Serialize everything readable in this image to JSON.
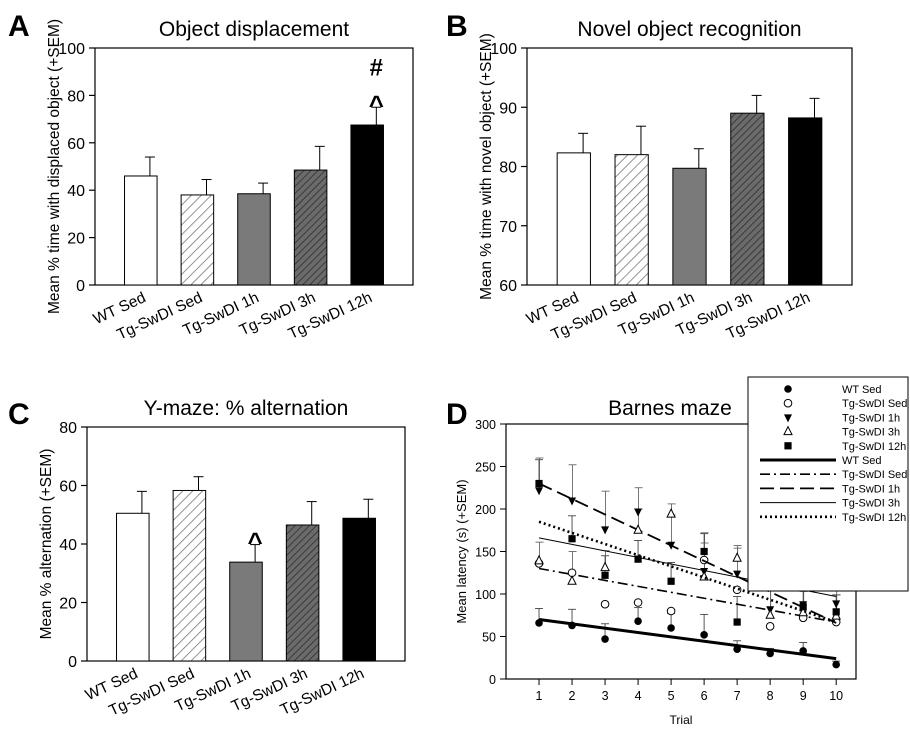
{
  "chart_data": [
    {
      "panel": "A",
      "type": "bar",
      "title": "Object displacement",
      "xlabel": "",
      "ylabel": "Mean % time with displaced object (+SEM)",
      "ylim": [
        0,
        100
      ],
      "yticks": [
        0,
        20,
        40,
        60,
        80,
        100
      ],
      "categories": [
        "WT Sed",
        "Tg-SwDI Sed",
        "Tg-SwDI 1h",
        "Tg-SwDI 3h",
        "Tg-SwDI 12h"
      ],
      "values": [
        46,
        38,
        38.5,
        48.5,
        67.5
      ],
      "sem": [
        8,
        6.5,
        4.5,
        10,
        7.5
      ],
      "fills": [
        "white",
        "hatch-light",
        "gray",
        "hatch-dark",
        "black"
      ],
      "annotations": [
        {
          "category": "Tg-SwDI 12h",
          "symbols": [
            "#",
            "^"
          ]
        }
      ]
    },
    {
      "panel": "B",
      "type": "bar",
      "title": "Novel object recognition",
      "xlabel": "",
      "ylabel": "Mean % time with novel object (+SEM)",
      "ylim": [
        60,
        100
      ],
      "yticks": [
        60,
        70,
        80,
        90,
        100
      ],
      "categories": [
        "WT Sed",
        "Tg-SwDI Sed",
        "Tg-SwDI 1h",
        "Tg-SwDI 3h",
        "Tg-SwDI 12h"
      ],
      "values": [
        82.3,
        82,
        79.7,
        89,
        88.2
      ],
      "sem": [
        3.3,
        4.8,
        3.3,
        3,
        3.3
      ],
      "fills": [
        "white",
        "hatch-light",
        "gray",
        "hatch-dark",
        "black"
      ],
      "annotations": []
    },
    {
      "panel": "C",
      "type": "bar",
      "title": "Y-maze: % alternation",
      "xlabel": "",
      "ylabel": "Mean % alternation (+SEM)",
      "ylim": [
        0,
        80
      ],
      "yticks": [
        0,
        20,
        40,
        60,
        80
      ],
      "categories": [
        "WT Sed",
        "Tg-SwDI Sed",
        "Tg-SwDI 1h",
        "Tg-SwDI 3h",
        "Tg-SwDI 12h"
      ],
      "values": [
        50.5,
        58.3,
        33.8,
        46.5,
        48.8
      ],
      "sem": [
        7.5,
        4.7,
        6,
        8,
        6.5
      ],
      "fills": [
        "white",
        "hatch-light",
        "gray",
        "hatch-dark",
        "black"
      ],
      "annotations": [
        {
          "category": "Tg-SwDI 1h",
          "symbols": [
            "^"
          ]
        }
      ]
    },
    {
      "panel": "D",
      "type": "scatter",
      "title": "Barnes maze",
      "xlabel": "Trial",
      "ylabel": "Mean latency (s) (+SEM)",
      "xlim": [
        0,
        10.6
      ],
      "ylim": [
        0,
        300
      ],
      "xticks": [
        1,
        2,
        3,
        4,
        5,
        6,
        7,
        8,
        9,
        10
      ],
      "yticks": [
        0,
        50,
        100,
        150,
        200,
        250,
        300
      ],
      "x": [
        1,
        2,
        3,
        4,
        5,
        6,
        7,
        8,
        9,
        10
      ],
      "series": [
        {
          "name": "WT Sed",
          "marker": "circle-filled",
          "line": "thick",
          "values": [
            66,
            63,
            47,
            68,
            60,
            52,
            35,
            30,
            33,
            17
          ],
          "sem": [
            17,
            19,
            18,
            16,
            17,
            24,
            10,
            6,
            10,
            4
          ],
          "fit": [
            70,
            24
          ]
        },
        {
          "name": "Tg-SwDI Sed",
          "marker": "circle-open",
          "line": "dash-dot",
          "values": [
            136,
            125,
            88,
            90,
            80,
            140,
            105,
            62,
            72,
            67
          ],
          "sem": [
            0,
            0,
            0,
            0,
            0,
            0,
            0,
            0,
            0,
            0
          ],
          "fit": [
            130,
            67
          ]
        },
        {
          "name": "Tg-SwDI 1h",
          "marker": "triangle-down-filled",
          "line": "long-dash",
          "values": [
            222,
            210,
            176,
            197,
            158,
            127,
            124,
            82,
            88,
            89
          ],
          "sem": [
            0,
            0,
            0,
            0,
            0,
            0,
            0,
            0,
            0,
            0
          ],
          "fit": [
            230,
            66
          ]
        },
        {
          "name": "Tg-SwDI 3h",
          "marker": "triangle-up-open",
          "line": "thin",
          "values": [
            139,
            115,
            131,
            175,
            194,
            120,
            142,
            75,
            78,
            74
          ],
          "sem": [
            0,
            0,
            0,
            0,
            0,
            0,
            0,
            0,
            0,
            0
          ],
          "fit": [
            166,
            97
          ]
        },
        {
          "name": "Tg-SwDI 12h",
          "marker": "square-filled",
          "line": "dotted",
          "values": [
            230,
            165,
            122,
            141,
            115,
            150,
            67,
            112,
            85,
            79
          ],
          "sem": [
            28,
            27,
            23,
            22,
            22,
            21,
            30,
            35,
            20,
            20
          ],
          "fit": [
            185,
            67
          ]
        }
      ],
      "legend_position": "top-right"
    }
  ]
}
